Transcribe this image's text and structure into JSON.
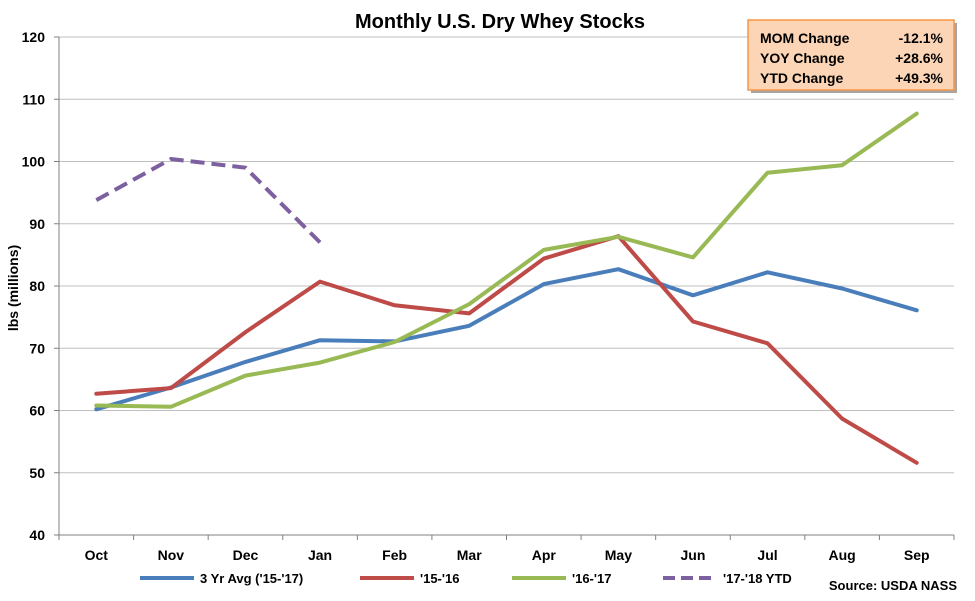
{
  "chart_data": {
    "type": "line",
    "title": "Monthly U.S. Dry Whey Stocks",
    "ylabel": "lbs (millions)",
    "xlabel": "",
    "ylim": [
      40,
      120
    ],
    "yticks": [
      40,
      50,
      60,
      70,
      80,
      90,
      100,
      110,
      120
    ],
    "categories": [
      "Oct",
      "Nov",
      "Dec",
      "Jan",
      "Feb",
      "Mar",
      "Apr",
      "May",
      "Jun",
      "Jul",
      "Aug",
      "Sep"
    ],
    "grid": true,
    "legend_position": "bottom",
    "series": [
      {
        "name": "3 Yr Avg ('15-'17)",
        "color": "#4a7ebb",
        "dashed": false,
        "values": [
          60.2,
          63.7,
          67.8,
          71.3,
          71.1,
          73.6,
          80.3,
          82.7,
          78.5,
          82.2,
          79.6,
          76.1
        ]
      },
      {
        "name": "'15-'16",
        "color": "#be4b48",
        "dashed": false,
        "values": [
          62.7,
          63.6,
          72.6,
          80.7,
          76.9,
          75.6,
          84.4,
          88.0,
          74.3,
          70.8,
          58.7,
          51.6
        ]
      },
      {
        "name": "'16-'17",
        "color": "#98b954",
        "dashed": false,
        "values": [
          60.8,
          60.6,
          65.6,
          67.7,
          71.0,
          77.1,
          85.8,
          87.9,
          84.6,
          98.2,
          99.4,
          107.7
        ]
      },
      {
        "name": "'17-'18 YTD",
        "color": "#7d60a0",
        "dashed": true,
        "values": [
          93.8,
          100.4,
          99.0,
          87.0,
          null,
          null,
          null,
          null,
          null,
          null,
          null,
          null
        ]
      }
    ],
    "source": "Source: USDA NASS",
    "stats_box": [
      {
        "label": "MOM Change",
        "value": "-12.1%"
      },
      {
        "label": "YOY Change",
        "value": "+28.6%"
      },
      {
        "label": "YTD Change",
        "value": "+49.3%"
      }
    ]
  }
}
